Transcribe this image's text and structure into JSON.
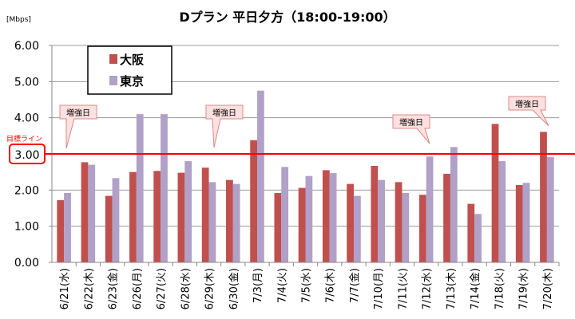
{
  "chart_data": {
    "type": "bar",
    "title": "Dプラン 平日夕方（18:00-19:00）",
    "ylabel": "[Mbps]",
    "xlabel": "",
    "ylim": [
      0,
      6
    ],
    "yticks": [
      "0.00",
      "1.00",
      "2.00",
      "3.00",
      "4.00",
      "5.00",
      "6.00"
    ],
    "grid": true,
    "legend_position": "top-left",
    "categories": [
      "6/21(水)",
      "6/22(木)",
      "6/23(金)",
      "6/26(月)",
      "6/27(火)",
      "6/28(水)",
      "6/29(木)",
      "6/30(金)",
      "7/3(月)",
      "7/4(火)",
      "7/5(水)",
      "7/6(木)",
      "7/7(金)",
      "7/10(月)",
      "7/11(火)",
      "7/12(水)",
      "7/13(木)",
      "7/14(金)",
      "7/18(火)",
      "7/19(水)",
      "7/20(木)"
    ],
    "series": [
      {
        "name": "大阪",
        "color": "#c0504d",
        "values": [
          1.72,
          2.77,
          1.84,
          2.5,
          2.53,
          2.48,
          2.62,
          2.28,
          3.38,
          1.92,
          2.06,
          2.55,
          2.17,
          2.67,
          2.22,
          1.87,
          2.45,
          1.62,
          3.83,
          2.14,
          3.61
        ]
      },
      {
        "name": "東京",
        "color": "#b1a0c7",
        "values": [
          1.92,
          2.7,
          2.33,
          4.1,
          4.1,
          2.8,
          2.22,
          2.17,
          4.75,
          2.64,
          2.39,
          2.47,
          1.84,
          2.28,
          1.92,
          2.93,
          3.19,
          1.34,
          2.8,
          2.2,
          2.91
        ]
      }
    ],
    "target_line": {
      "label": "目標ライン",
      "value_label": "3.00",
      "value": 3.0,
      "color": "#ff0000"
    },
    "annotations": [
      {
        "text": "増強日",
        "category_index": 0
      },
      {
        "text": "増強日",
        "category_index": 6
      },
      {
        "text": "増強日",
        "category_index": 15
      },
      {
        "text": "増強日",
        "category_index": 20
      }
    ]
  }
}
